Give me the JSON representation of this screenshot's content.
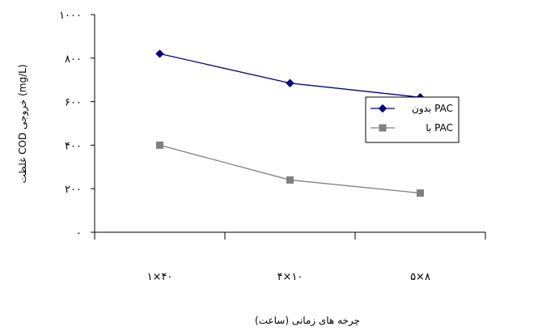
{
  "chart_data": {
    "type": "line",
    "categories": [
      "۱×۴۰",
      "۴×۱۰",
      "۵×۸"
    ],
    "xlabel": "چرخه های زمانی (ساعت)",
    "ylabel": "غلظت COD خروجی (mg/L)",
    "ylim": [
      0,
      1000
    ],
    "yticks": [
      0,
      200,
      400,
      600,
      800,
      1000
    ],
    "ytick_labels": [
      "۰",
      "۲۰۰",
      "۴۰۰",
      "۶۰۰",
      "۸۰۰",
      "۱۰۰۰"
    ],
    "grid": false,
    "legend_position": "right",
    "series": [
      {
        "name": "بدون PAC",
        "values": [
          820,
          685,
          620
        ],
        "color": "#00008B",
        "marker": "diamond"
      },
      {
        "name": "با PAC",
        "values": [
          400,
          240,
          180
        ],
        "color": "#808080",
        "marker": "square"
      }
    ]
  }
}
